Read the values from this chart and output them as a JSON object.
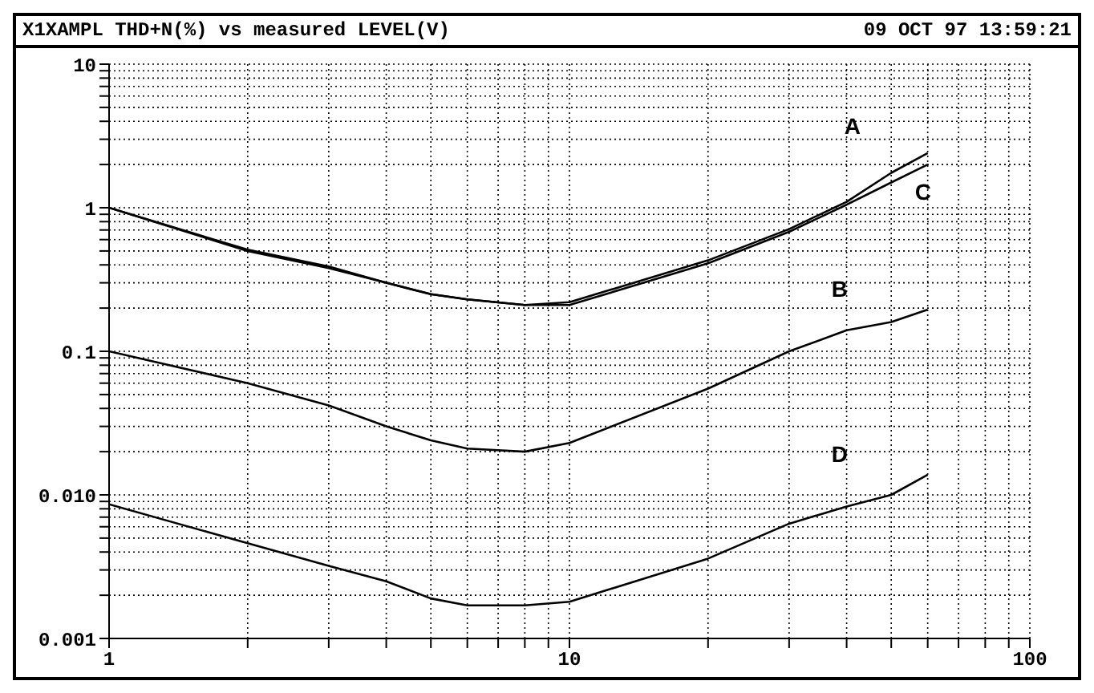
{
  "chart_data": {
    "type": "line",
    "title": "X1XAMPL THD+N(%) vs measured LEVEL(V)",
    "annotations": [
      "09 OCT 97 13:59:21"
    ],
    "x": [
      1,
      2,
      3,
      4,
      5,
      6,
      8,
      10,
      20,
      30,
      40,
      50,
      60
    ],
    "series": [
      {
        "name": "A",
        "color": "#000000",
        "values": [
          1,
          0.51,
          0.39,
          0.3,
          0.25,
          0.23,
          0.21,
          0.22,
          0.43,
          0.71,
          1.1,
          1.75,
          2.4
        ]
      },
      {
        "name": "B",
        "color": "#000000",
        "values": [
          0.1,
          0.06,
          0.042,
          0.03,
          0.024,
          0.021,
          0.02,
          0.023,
          0.055,
          0.1,
          0.14,
          0.16,
          0.195
        ]
      },
      {
        "name": "C",
        "color": "#000000",
        "values": [
          1,
          0.5,
          0.38,
          0.3,
          0.25,
          0.23,
          0.21,
          0.21,
          0.41,
          0.68,
          1.05,
          1.5,
          2.0
        ]
      },
      {
        "name": "D",
        "color": "#000000",
        "values": [
          0.0086,
          0.0046,
          0.0032,
          0.0025,
          0.0019,
          0.0017,
          0.0017,
          0.0018,
          0.0036,
          0.0063,
          0.0083,
          0.01,
          0.0138
        ]
      }
    ],
    "log": "xy",
    "xlim": [
      1,
      100
    ],
    "ylim": [
      0.001,
      10
    ],
    "xticks": [
      1,
      {
        "value": 2,
        "label": null
      },
      {
        "value": 3,
        "label": null
      },
      {
        "value": 4,
        "label": null
      },
      {
        "value": 5,
        "label": null
      },
      {
        "value": 6,
        "label": null
      },
      {
        "value": 7,
        "label": null
      },
      {
        "value": 8,
        "label": null
      },
      {
        "value": 9,
        "label": null
      },
      10,
      {
        "value": 20,
        "label": null
      },
      {
        "value": 30,
        "label": null
      },
      {
        "value": 40,
        "label": null
      },
      {
        "value": 50,
        "label": null
      },
      {
        "value": 60,
        "label": null
      },
      {
        "value": 70,
        "label": null
      },
      {
        "value": 80,
        "label": null
      },
      {
        "value": 90,
        "label": null
      },
      100
    ],
    "yticks": [
      {
        "value": 0.001,
        "label": "0.001"
      },
      {
        "value": 0.002,
        "label": null
      },
      {
        "value": 0.003,
        "label": null
      },
      {
        "value": 0.004,
        "label": null
      },
      {
        "value": 0.005,
        "label": null
      },
      {
        "value": 0.006,
        "label": null
      },
      {
        "value": 0.007,
        "label": null
      },
      {
        "value": 0.008,
        "label": null
      },
      {
        "value": 0.009,
        "label": null
      },
      {
        "value": 0.01,
        "label": "0.010"
      },
      {
        "value": 0.02,
        "label": null
      },
      {
        "value": 0.03,
        "label": null
      },
      {
        "value": 0.04,
        "label": null
      },
      {
        "value": 0.05,
        "label": null
      },
      {
        "value": 0.06,
        "label": null
      },
      {
        "value": 0.07,
        "label": null
      },
      {
        "value": 0.08,
        "label": null
      },
      {
        "value": 0.09,
        "label": null
      },
      0.1,
      {
        "value": 0.2,
        "label": null
      },
      {
        "value": 0.3,
        "label": null
      },
      {
        "value": 0.4,
        "label": null
      },
      {
        "value": 0.5,
        "label": null
      },
      {
        "value": 0.6,
        "label": null
      },
      {
        "value": 0.7,
        "label": null
      },
      {
        "value": 0.8,
        "label": null
      },
      {
        "value": 0.9,
        "label": null
      },
      1,
      {
        "value": 2,
        "label": null
      },
      {
        "value": 3,
        "label": null
      },
      {
        "value": 4,
        "label": null
      },
      {
        "value": 5,
        "label": null
      },
      {
        "value": 6,
        "label": null
      },
      {
        "value": 7,
        "label": null
      },
      {
        "value": 8,
        "label": null
      },
      {
        "value": 9,
        "label": null
      },
      10
    ],
    "grid": true,
    "legend": false,
    "marker": "none",
    "line_style": "solid"
  }
}
